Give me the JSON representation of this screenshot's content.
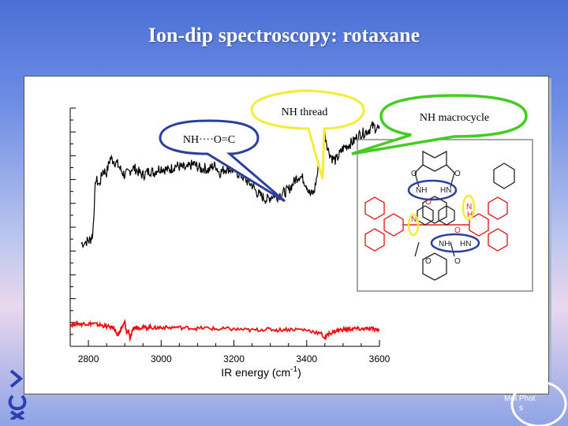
{
  "slide": {
    "title": "Ion-dip spectroscopy: rotaxane"
  },
  "annotations": {
    "nh_thread": "NH thread",
    "nh_macrocycle": "NH macrocycle",
    "nh_oc": "NH····O=C"
  },
  "molecule": {
    "labels": [
      "O",
      "O",
      "NH",
      "HN",
      "O",
      "N",
      "N",
      "H",
      "O",
      "NH",
      "HN",
      "O",
      "O"
    ]
  },
  "logo": {
    "text_line1": "Mol   Phot",
    "text_line2": "s"
  },
  "colors": {
    "black_trace": "#000000",
    "red_trace": "#ee1111",
    "bubble_yellow": "#f5ec3a",
    "bubble_green": "#44cc22",
    "bubble_blue": "#2d3f9c",
    "macrocycle_color": "#222222",
    "thread_color": "#e02020"
  },
  "chart_data": {
    "type": "line",
    "xlabel": "IR energy (cm-1)",
    "xlim": [
      2750,
      3600
    ],
    "x_ticks": [
      2800,
      3000,
      3200,
      3400,
      3600
    ],
    "grid": false,
    "series": [
      {
        "color": "#000000",
        "x": [
          2780,
          2795,
          2805,
          2812,
          2820,
          2830,
          2840,
          2850,
          2860,
          2870,
          2880,
          2890,
          2900,
          2910,
          2920,
          2930,
          2940,
          2950,
          2960,
          2970,
          2980,
          2990,
          3000,
          3010,
          3020,
          3030,
          3040,
          3050,
          3060,
          3070,
          3080,
          3090,
          3100,
          3110,
          3120,
          3130,
          3140,
          3150,
          3160,
          3170,
          3180,
          3190,
          3200,
          3210,
          3220,
          3230,
          3240,
          3250,
          3260,
          3270,
          3280,
          3290,
          3300,
          3310,
          3320,
          3330,
          3340,
          3350,
          3360,
          3370,
          3380,
          3390,
          3400,
          3410,
          3420,
          3430,
          3440,
          3450,
          3460,
          3470,
          3480,
          3490,
          3500,
          3510,
          3520,
          3530,
          3540,
          3550,
          3560,
          3570,
          3580,
          3590,
          3600
        ],
        "y": [
          0.02,
          0.04,
          0.05,
          0.1,
          0.55,
          0.5,
          0.62,
          0.6,
          0.72,
          0.7,
          0.67,
          0.62,
          0.58,
          0.6,
          0.64,
          0.63,
          0.6,
          0.58,
          0.6,
          0.62,
          0.6,
          0.63,
          0.64,
          0.63,
          0.62,
          0.64,
          0.66,
          0.65,
          0.64,
          0.63,
          0.66,
          0.67,
          0.65,
          0.63,
          0.64,
          0.62,
          0.65,
          0.66,
          0.6,
          0.62,
          0.64,
          0.63,
          0.62,
          0.6,
          0.58,
          0.55,
          0.52,
          0.5,
          0.45,
          0.42,
          0.4,
          0.38,
          0.4,
          0.42,
          0.41,
          0.43,
          0.44,
          0.46,
          0.5,
          0.55,
          0.58,
          0.55,
          0.5,
          0.42,
          0.44,
          0.6,
          0.85,
          0.92,
          0.78,
          0.72,
          0.7,
          0.75,
          0.8,
          0.82,
          0.84,
          0.86,
          0.9,
          0.92,
          0.93,
          0.95,
          0.98,
          0.97,
          0.96
        ]
      },
      {
        "color": "#ee1111",
        "x": [
          2750,
          2760,
          2770,
          2780,
          2790,
          2800,
          2810,
          2820,
          2830,
          2840,
          2850,
          2860,
          2870,
          2875,
          2880,
          2885,
          2890,
          2895,
          2900,
          2905,
          2910,
          2915,
          2920,
          2925,
          2930,
          2935,
          2940,
          2950,
          2960,
          2970,
          2980,
          2990,
          3000,
          3020,
          3040,
          3060,
          3080,
          3100,
          3120,
          3140,
          3160,
          3180,
          3200,
          3220,
          3240,
          3260,
          3280,
          3300,
          3320,
          3340,
          3360,
          3380,
          3400,
          3420,
          3440,
          3450,
          3460,
          3470,
          3480,
          3490,
          3500,
          3510,
          3520,
          3530,
          3540,
          3550,
          3560,
          3570,
          3580,
          3590,
          3600
        ],
        "y": [
          0.16,
          0.17,
          0.18,
          0.17,
          0.18,
          0.17,
          0.18,
          0.17,
          0.16,
          0.15,
          0.14,
          0.13,
          0.12,
          0.08,
          0.0,
          0.05,
          0.12,
          0.14,
          0.2,
          0.05,
          0.1,
          -0.05,
          0.08,
          0.12,
          0.14,
          0.13,
          0.12,
          0.13,
          0.12,
          0.13,
          0.12,
          0.12,
          0.13,
          0.12,
          0.13,
          0.12,
          0.12,
          0.11,
          0.12,
          0.11,
          0.1,
          0.11,
          0.1,
          0.1,
          0.09,
          0.09,
          0.1,
          0.1,
          0.09,
          0.1,
          0.1,
          0.1,
          0.09,
          0.07,
          0.04,
          -0.02,
          0.04,
          0.06,
          0.08,
          0.09,
          0.1,
          0.1,
          0.1,
          0.11,
          0.11,
          0.1,
          0.11,
          0.1,
          0.11,
          0.1,
          0.1
        ]
      }
    ]
  }
}
